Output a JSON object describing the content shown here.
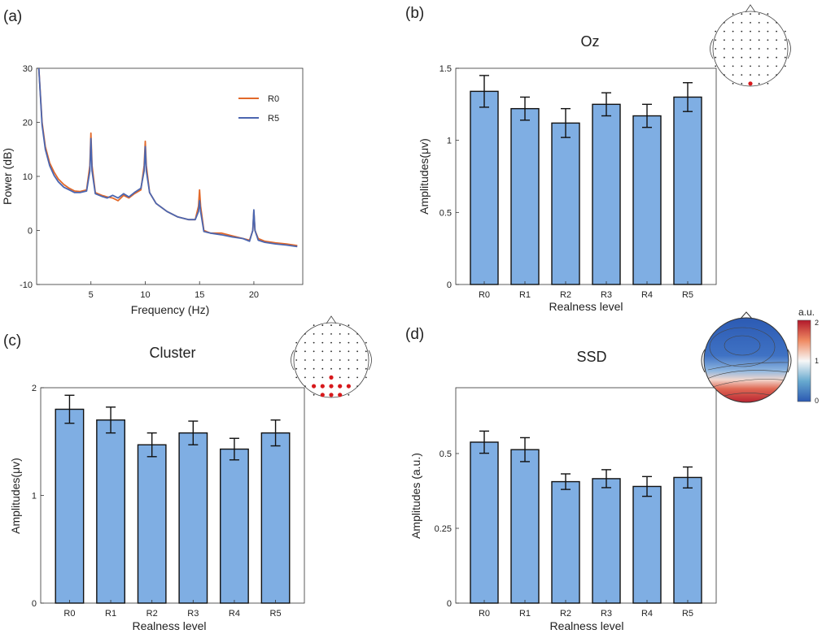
{
  "colors": {
    "bar_fill": "#7faee3",
    "r0_line": "#e2692a",
    "r5_line": "#4b66b0",
    "electrode_highlight": "#d7191c",
    "axis": "#222222"
  },
  "panels": {
    "a": {
      "label": "(a)"
    },
    "b": {
      "label": "(b)"
    },
    "c": {
      "label": "(c)"
    },
    "d": {
      "label": "(d)"
    }
  },
  "colorbar": {
    "title": "a.u.",
    "ticks": [
      "2",
      "1",
      "0"
    ],
    "colors": [
      "#b2182b",
      "#ef8a62",
      "#f7f7f7",
      "#67a9cf",
      "#2b59b2"
    ]
  },
  "chart_data": [
    {
      "id": "a",
      "type": "line",
      "xlabel": "Frequency (Hz)",
      "ylabel": "Power (dB)",
      "xlim": [
        0,
        24.5
      ],
      "ylim": [
        -10,
        30
      ],
      "xticks": [
        5,
        10,
        15,
        20
      ],
      "yticks": [
        -10,
        0,
        10,
        20,
        30
      ],
      "legend": "top-right",
      "series": [
        {
          "name": "R0",
          "x": [
            0.2,
            0.5,
            0.8,
            1.2,
            1.6,
            2.0,
            2.5,
            3.0,
            3.5,
            4.0,
            4.6,
            4.9,
            5.0,
            5.1,
            5.4,
            6.0,
            6.5,
            7.0,
            7.5,
            8.0,
            8.5,
            9.0,
            9.6,
            9.9,
            10.0,
            10.1,
            10.4,
            11.0,
            12.0,
            13.0,
            14.0,
            14.6,
            14.9,
            15.0,
            15.1,
            15.4,
            16.0,
            17.0,
            18.0,
            19.0,
            19.6,
            19.9,
            20.0,
            20.1,
            20.4,
            21.0,
            22.0,
            23.0,
            24.0
          ],
          "y": [
            30,
            20,
            15.5,
            12.5,
            10.8,
            9.5,
            8.5,
            7.8,
            7.3,
            7.2,
            7.5,
            12,
            18,
            12,
            7,
            6.5,
            6.2,
            6.0,
            5.5,
            6.5,
            6.0,
            6.8,
            7.5,
            12,
            16.5,
            12,
            7,
            5,
            3.5,
            2.5,
            2.0,
            2.0,
            4.5,
            7.5,
            4.5,
            0,
            -0.5,
            -0.5,
            -1.0,
            -1.5,
            -1.8,
            0,
            3.5,
            0,
            -1.5,
            -2.0,
            -2.3,
            -2.5,
            -2.8
          ]
        },
        {
          "name": "R5",
          "x": [
            0.2,
            0.5,
            0.8,
            1.2,
            1.6,
            2.0,
            2.5,
            3.0,
            3.5,
            4.0,
            4.6,
            4.9,
            5.0,
            5.1,
            5.4,
            6.0,
            6.5,
            7.0,
            7.5,
            8.0,
            8.5,
            9.0,
            9.6,
            9.9,
            10.0,
            10.1,
            10.4,
            11.0,
            12.0,
            13.0,
            14.0,
            14.6,
            14.9,
            15.0,
            15.1,
            15.4,
            16.0,
            17.0,
            18.0,
            19.0,
            19.6,
            19.9,
            20.0,
            20.1,
            20.4,
            21.0,
            22.0,
            23.0,
            24.0
          ],
          "y": [
            30,
            19.5,
            15,
            12,
            10.2,
            9.0,
            8.0,
            7.5,
            7.0,
            7.0,
            7.3,
            11,
            17,
            11,
            6.8,
            6.3,
            6.0,
            6.5,
            6.0,
            6.8,
            6.2,
            7.0,
            7.8,
            11,
            15.5,
            11,
            7,
            5,
            3.5,
            2.5,
            2.0,
            2.0,
            3.5,
            5.5,
            3.5,
            -0.2,
            -0.5,
            -0.8,
            -1.2,
            -1.5,
            -2.0,
            0,
            3.8,
            0,
            -1.8,
            -2.2,
            -2.5,
            -2.7,
            -3.0
          ]
        }
      ]
    },
    {
      "id": "b",
      "type": "bar",
      "title": "Oz",
      "xlabel": "Realness level",
      "ylabel": "Amplitudes(μv)",
      "categories": [
        "R0",
        "R1",
        "R2",
        "R3",
        "R4",
        "R5"
      ],
      "values": [
        1.34,
        1.22,
        1.12,
        1.25,
        1.17,
        1.3
      ],
      "errors": [
        0.11,
        0.08,
        0.1,
        0.08,
        0.08,
        0.1
      ],
      "ylim": [
        0,
        1.5
      ],
      "yticks": [
        0,
        0.5,
        1,
        1.5
      ],
      "ytick_labels": [
        "0",
        "0.5",
        "1",
        "1.5"
      ]
    },
    {
      "id": "c",
      "type": "bar",
      "title": "Cluster",
      "xlabel": "Realness level",
      "ylabel": "Amplitudes(μv)",
      "categories": [
        "R0",
        "R1",
        "R2",
        "R3",
        "R4",
        "R5"
      ],
      "values": [
        1.8,
        1.7,
        1.47,
        1.58,
        1.43,
        1.58
      ],
      "errors": [
        0.13,
        0.12,
        0.11,
        0.11,
        0.1,
        0.12
      ],
      "ylim": [
        0,
        2.0
      ],
      "yticks": [
        0,
        1,
        2
      ],
      "ytick_labels": [
        "0",
        "1",
        "2"
      ]
    },
    {
      "id": "d",
      "type": "bar",
      "title": "SSD",
      "xlabel": "Realness level",
      "ylabel": "Amplitudes (a.u.)",
      "categories": [
        "R0",
        "R1",
        "R2",
        "R3",
        "R4",
        "R5"
      ],
      "values": [
        0.538,
        0.513,
        0.406,
        0.416,
        0.39,
        0.42
      ],
      "errors": [
        0.037,
        0.04,
        0.026,
        0.03,
        0.033,
        0.035
      ],
      "ylim": [
        0,
        0.72
      ],
      "yticks": [
        0,
        0.25,
        0.5
      ],
      "ytick_labels": [
        "0",
        "0.25",
        "0.5"
      ]
    }
  ]
}
